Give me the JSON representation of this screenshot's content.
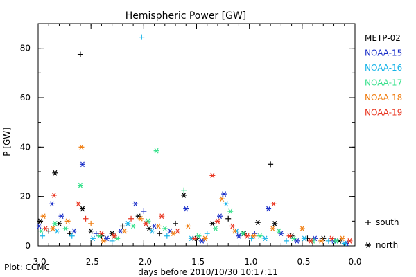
{
  "chart_data": {
    "type": "scatter",
    "title": "Hemispheric Power [GW]",
    "xlabel": "days before 2010/10/30 10:17:11",
    "ylabel": "P [GW]",
    "xlim": [
      -3.0,
      0.0
    ],
    "ylim": [
      0,
      90
    ],
    "x_ticks": [
      "-3.0",
      "-2.5",
      "-2.0",
      "-1.5",
      "-1.0",
      "-0.5",
      "0.0"
    ],
    "y_ticks": [
      "0",
      "20",
      "40",
      "60",
      "80"
    ],
    "footer": "Plot: CCMC",
    "hemisphere_legend": [
      {
        "symbol": "+",
        "label": "south"
      },
      {
        "symbol": "*",
        "label": "north"
      }
    ],
    "series": [
      {
        "name": "METP-02",
        "color": "#000000",
        "points": [
          {
            "x": -2.98,
            "y": 10,
            "h": "N"
          },
          {
            "x": -2.9,
            "y": 6,
            "h": "S"
          },
          {
            "x": -2.84,
            "y": 29.5,
            "h": "N"
          },
          {
            "x": -2.8,
            "y": 9,
            "h": "N"
          },
          {
            "x": -2.7,
            "y": 5,
            "h": "S"
          },
          {
            "x": -2.6,
            "y": 77.5,
            "h": "S"
          },
          {
            "x": -2.58,
            "y": 15,
            "h": "N"
          },
          {
            "x": -2.5,
            "y": 6,
            "h": "N"
          },
          {
            "x": -2.4,
            "y": 4,
            "h": "S"
          },
          {
            "x": -2.3,
            "y": 5,
            "h": "N"
          },
          {
            "x": -2.2,
            "y": 8,
            "h": "S"
          },
          {
            "x": -2.05,
            "y": 12,
            "h": "N"
          },
          {
            "x": -1.95,
            "y": 7,
            "h": "N"
          },
          {
            "x": -1.85,
            "y": 5,
            "h": "S"
          },
          {
            "x": -1.7,
            "y": 9,
            "h": "S"
          },
          {
            "x": -1.62,
            "y": 20.5,
            "h": "N"
          },
          {
            "x": -1.5,
            "y": 3,
            "h": "N"
          },
          {
            "x": -1.35,
            "y": 9,
            "h": "N"
          },
          {
            "x": -1.2,
            "y": 11,
            "h": "S"
          },
          {
            "x": -1.05,
            "y": 5,
            "h": "N"
          },
          {
            "x": -0.92,
            "y": 9.5,
            "h": "N"
          },
          {
            "x": -0.8,
            "y": 33,
            "h": "S"
          },
          {
            "x": -0.76,
            "y": 9,
            "h": "N"
          },
          {
            "x": -0.6,
            "y": 4,
            "h": "N"
          },
          {
            "x": -0.45,
            "y": 3,
            "h": "S"
          },
          {
            "x": -0.3,
            "y": 3,
            "h": "N"
          },
          {
            "x": -0.15,
            "y": 2,
            "h": "N"
          }
        ]
      },
      {
        "name": "NOAA-15",
        "color": "#1a2fc8",
        "points": [
          {
            "x": -2.99,
            "y": 8,
            "h": "N"
          },
          {
            "x": -2.87,
            "y": 17,
            "h": "N"
          },
          {
            "x": -2.78,
            "y": 12,
            "h": "N"
          },
          {
            "x": -2.66,
            "y": 6,
            "h": "N"
          },
          {
            "x": -2.58,
            "y": 33,
            "h": "N"
          },
          {
            "x": -2.45,
            "y": 5,
            "h": "S"
          },
          {
            "x": -2.35,
            "y": 3,
            "h": "N"
          },
          {
            "x": -2.22,
            "y": 6,
            "h": "N"
          },
          {
            "x": -2.08,
            "y": 17,
            "h": "N"
          },
          {
            "x": -2.0,
            "y": 14,
            "h": "S"
          },
          {
            "x": -1.9,
            "y": 8,
            "h": "N"
          },
          {
            "x": -1.75,
            "y": 6,
            "h": "N"
          },
          {
            "x": -1.6,
            "y": 15,
            "h": "N"
          },
          {
            "x": -1.45,
            "y": 2,
            "h": "N"
          },
          {
            "x": -1.28,
            "y": 12,
            "h": "N"
          },
          {
            "x": -1.24,
            "y": 21,
            "h": "N"
          },
          {
            "x": -1.1,
            "y": 4,
            "h": "N"
          },
          {
            "x": -0.95,
            "y": 5,
            "h": "S"
          },
          {
            "x": -0.82,
            "y": 15,
            "h": "N"
          },
          {
            "x": -0.7,
            "y": 5,
            "h": "N"
          },
          {
            "x": -0.55,
            "y": 2,
            "h": "N"
          },
          {
            "x": -0.38,
            "y": 3,
            "h": "N"
          },
          {
            "x": -0.2,
            "y": 2,
            "h": "N"
          },
          {
            "x": -0.08,
            "y": 1,
            "h": "N"
          }
        ]
      },
      {
        "name": "NOAA-16",
        "color": "#18b4e8",
        "points": [
          {
            "x": -2.96,
            "y": 4,
            "h": "S"
          },
          {
            "x": -2.82,
            "y": 6,
            "h": "N"
          },
          {
            "x": -2.68,
            "y": 4,
            "h": "S"
          },
          {
            "x": -2.48,
            "y": 3,
            "h": "N"
          },
          {
            "x": -2.3,
            "y": 2,
            "h": "S"
          },
          {
            "x": -2.15,
            "y": 9,
            "h": "N"
          },
          {
            "x": -2.02,
            "y": 84.5,
            "h": "S"
          },
          {
            "x": -1.92,
            "y": 6,
            "h": "N"
          },
          {
            "x": -1.78,
            "y": 4,
            "h": "S"
          },
          {
            "x": -1.55,
            "y": 3,
            "h": "N"
          },
          {
            "x": -1.4,
            "y": 5,
            "h": "S"
          },
          {
            "x": -1.22,
            "y": 17,
            "h": "N"
          },
          {
            "x": -1.12,
            "y": 6,
            "h": "N"
          },
          {
            "x": -0.98,
            "y": 3,
            "h": "S"
          },
          {
            "x": -0.85,
            "y": 3,
            "h": "N"
          },
          {
            "x": -0.65,
            "y": 2,
            "h": "S"
          },
          {
            "x": -0.48,
            "y": 3,
            "h": "N"
          },
          {
            "x": -0.25,
            "y": 2,
            "h": "S"
          },
          {
            "x": -0.1,
            "y": 1,
            "h": "N"
          }
        ]
      },
      {
        "name": "NOAA-17",
        "color": "#34e08a",
        "points": [
          {
            "x": -2.97,
            "y": 6,
            "h": "N"
          },
          {
            "x": -2.84,
            "y": 9,
            "h": "N"
          },
          {
            "x": -2.74,
            "y": 7,
            "h": "N"
          },
          {
            "x": -2.6,
            "y": 24.5,
            "h": "N"
          },
          {
            "x": -2.42,
            "y": 4,
            "h": "N"
          },
          {
            "x": -2.25,
            "y": 3,
            "h": "N"
          },
          {
            "x": -2.1,
            "y": 8,
            "h": "N"
          },
          {
            "x": -1.96,
            "y": 10,
            "h": "N"
          },
          {
            "x": -1.88,
            "y": 38.5,
            "h": "N"
          },
          {
            "x": -1.8,
            "y": 7,
            "h": "N"
          },
          {
            "x": -1.62,
            "y": 22.5,
            "h": "S"
          },
          {
            "x": -1.48,
            "y": 4,
            "h": "N"
          },
          {
            "x": -1.32,
            "y": 7,
            "h": "N"
          },
          {
            "x": -1.18,
            "y": 14,
            "h": "N"
          },
          {
            "x": -1.06,
            "y": 5,
            "h": "N"
          },
          {
            "x": -0.9,
            "y": 4,
            "h": "N"
          },
          {
            "x": -0.72,
            "y": 6,
            "h": "N"
          },
          {
            "x": -0.58,
            "y": 3,
            "h": "N"
          },
          {
            "x": -0.4,
            "y": 2,
            "h": "N"
          },
          {
            "x": -0.18,
            "y": 2,
            "h": "N"
          }
        ]
      },
      {
        "name": "NOAA-18",
        "color": "#f07d10",
        "points": [
          {
            "x": -2.95,
            "y": 12,
            "h": "N"
          },
          {
            "x": -2.86,
            "y": 7,
            "h": "N"
          },
          {
            "x": -2.72,
            "y": 10,
            "h": "N"
          },
          {
            "x": -2.59,
            "y": 40,
            "h": "N"
          },
          {
            "x": -2.5,
            "y": 9,
            "h": "S"
          },
          {
            "x": -2.38,
            "y": 2,
            "h": "N"
          },
          {
            "x": -2.18,
            "y": 6,
            "h": "N"
          },
          {
            "x": -2.03,
            "y": 11,
            "h": "N"
          },
          {
            "x": -1.86,
            "y": 8,
            "h": "N"
          },
          {
            "x": -1.72,
            "y": 5,
            "h": "N"
          },
          {
            "x": -1.58,
            "y": 8,
            "h": "N"
          },
          {
            "x": -1.42,
            "y": 3,
            "h": "N"
          },
          {
            "x": -1.26,
            "y": 19,
            "h": "N"
          },
          {
            "x": -1.14,
            "y": 6,
            "h": "N"
          },
          {
            "x": -0.96,
            "y": 4,
            "h": "N"
          },
          {
            "x": -0.78,
            "y": 7,
            "h": "N"
          },
          {
            "x": -0.5,
            "y": 7,
            "h": "N"
          },
          {
            "x": -0.32,
            "y": 2,
            "h": "N"
          },
          {
            "x": -0.12,
            "y": 3,
            "h": "N"
          }
        ]
      },
      {
        "name": "NOAA-19",
        "color": "#e8331e",
        "points": [
          {
            "x": -2.93,
            "y": 7,
            "h": "N"
          },
          {
            "x": -2.85,
            "y": 20.5,
            "h": "N"
          },
          {
            "x": -2.62,
            "y": 17,
            "h": "N"
          },
          {
            "x": -2.55,
            "y": 11,
            "h": "S"
          },
          {
            "x": -2.4,
            "y": 5,
            "h": "N"
          },
          {
            "x": -2.28,
            "y": 4,
            "h": "N"
          },
          {
            "x": -2.12,
            "y": 11,
            "h": "S"
          },
          {
            "x": -1.98,
            "y": 9,
            "h": "N"
          },
          {
            "x": -1.83,
            "y": 12,
            "h": "N"
          },
          {
            "x": -1.68,
            "y": 6,
            "h": "N"
          },
          {
            "x": -1.52,
            "y": 3,
            "h": "N"
          },
          {
            "x": -1.35,
            "y": 28.5,
            "h": "N"
          },
          {
            "x": -1.3,
            "y": 10,
            "h": "N"
          },
          {
            "x": -1.16,
            "y": 8,
            "h": "N"
          },
          {
            "x": -1.02,
            "y": 4,
            "h": "N"
          },
          {
            "x": -0.77,
            "y": 17,
            "h": "N"
          },
          {
            "x": -0.62,
            "y": 4,
            "h": "N"
          },
          {
            "x": -0.42,
            "y": 2,
            "h": "N"
          },
          {
            "x": -0.22,
            "y": 3,
            "h": "N"
          },
          {
            "x": -0.05,
            "y": 2,
            "h": "N"
          }
        ]
      }
    ]
  }
}
